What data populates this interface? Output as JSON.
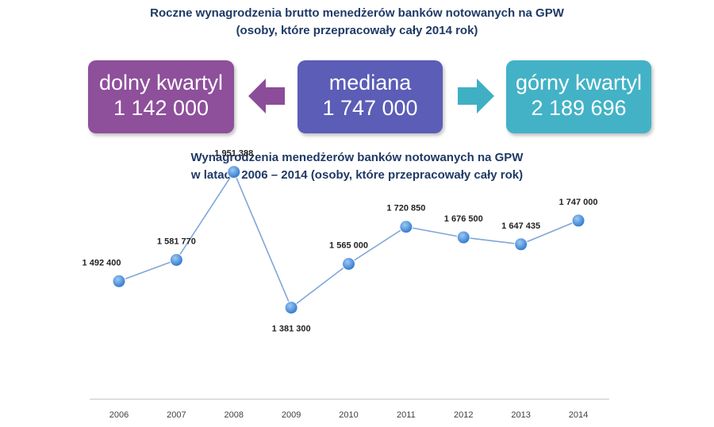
{
  "header": {
    "title_line1": "Roczne wynagrodzenia brutto menedżerów banków notowanych na GPW",
    "title_line2": "(osoby, które przepracowały cały 2014 rok)"
  },
  "summary": {
    "lower_quartile": {
      "label": "dolny kwartyl",
      "value": "1 142 000"
    },
    "median": {
      "label": "mediana",
      "value": "1 747 000"
    },
    "upper_quartile": {
      "label": "górny kwartyl",
      "value": "2 189 696"
    }
  },
  "colors": {
    "lower_box": "#8e4f9b",
    "median_box": "#5b5db6",
    "upper_box": "#43b2c6",
    "left_arrow": "#8b4d99",
    "right_arrow": "#3fb0c3",
    "line": "#7fa6d8",
    "marker": "#2f78cc"
  },
  "chart_data": {
    "type": "line",
    "title_line1": "Wynagrodzenia menedżerów banków notowanych na GPW",
    "title_line2": "w latach 2006 – 2014 (osoby, które przepracowały cały rok)",
    "categories": [
      "2006",
      "2007",
      "2008",
      "2009",
      "2010",
      "2011",
      "2012",
      "2013",
      "2014"
    ],
    "values": [
      1492400,
      1581770,
      1951388,
      1381300,
      1565000,
      1720850,
      1676500,
      1647435,
      1747000
    ],
    "data_labels": [
      "1 492 400",
      "1 581 770",
      "1 951 388",
      "1 381 300",
      "1 565 000",
      "1 720 850",
      "1 676 500",
      "1 647 435",
      "1 747 000"
    ],
    "ylim": [
      1000000,
      2100000
    ],
    "grid": false,
    "legend": "none"
  }
}
